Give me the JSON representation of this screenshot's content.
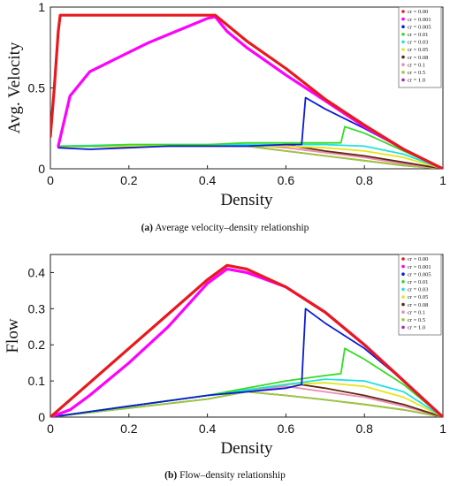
{
  "chart_data": [
    {
      "type": "line",
      "caption_tag": "(a)",
      "caption_text": "Average velocity–density relationship",
      "xlabel": "Density",
      "ylabel": "Avg. Velocity",
      "xlim": [
        0,
        1
      ],
      "ylim": [
        0,
        1
      ],
      "xticks": [
        "0",
        "0.2",
        "0.4",
        "0.6",
        "0.8",
        "1"
      ],
      "yticks": [
        "0",
        "0.5",
        "1"
      ],
      "legend_position": "top-right",
      "series": [
        {
          "name": "cr = 0.00",
          "color": "#e8191d",
          "x": [
            0.0,
            0.01,
            0.02,
            0.025,
            0.03,
            0.1,
            0.2,
            0.3,
            0.4,
            0.42,
            0.5,
            0.6,
            0.7,
            0.8,
            0.9,
            1.0
          ],
          "y": [
            0.2,
            0.5,
            0.85,
            0.95,
            0.95,
            0.95,
            0.95,
            0.95,
            0.95,
            0.95,
            0.79,
            0.62,
            0.43,
            0.27,
            0.12,
            0.0
          ]
        },
        {
          "name": "cr = 0.001",
          "color": "#ff00ff",
          "x": [
            0.02,
            0.05,
            0.1,
            0.15,
            0.2,
            0.25,
            0.3,
            0.35,
            0.4,
            0.42,
            0.45,
            0.5,
            0.6,
            0.7,
            0.8,
            0.9,
            1.0
          ],
          "y": [
            0.14,
            0.45,
            0.6,
            0.66,
            0.72,
            0.78,
            0.83,
            0.88,
            0.93,
            0.94,
            0.85,
            0.75,
            0.58,
            0.42,
            0.26,
            0.12,
            0.0
          ]
        },
        {
          "name": "cr = 0.005",
          "color": "#0a1cd6",
          "x": [
            0.02,
            0.1,
            0.2,
            0.3,
            0.4,
            0.5,
            0.6,
            0.64,
            0.65,
            0.7,
            0.8,
            0.9,
            1.0
          ],
          "y": [
            0.13,
            0.12,
            0.13,
            0.14,
            0.14,
            0.14,
            0.15,
            0.15,
            0.44,
            0.37,
            0.25,
            0.12,
            0.0
          ]
        },
        {
          "name": "cr = 0.01",
          "color": "#33dd22",
          "x": [
            0.02,
            0.1,
            0.2,
            0.3,
            0.4,
            0.5,
            0.6,
            0.7,
            0.74,
            0.75,
            0.8,
            0.9,
            1.0
          ],
          "y": [
            0.14,
            0.14,
            0.15,
            0.15,
            0.15,
            0.16,
            0.16,
            0.16,
            0.16,
            0.26,
            0.22,
            0.11,
            0.0
          ]
        },
        {
          "name": "cr = 0.03",
          "color": "#22e0e0",
          "x": [
            0.02,
            0.2,
            0.4,
            0.6,
            0.7,
            0.8,
            0.9,
            1.0
          ],
          "y": [
            0.14,
            0.15,
            0.15,
            0.15,
            0.15,
            0.14,
            0.09,
            0.0
          ]
        },
        {
          "name": "cr = 0.05",
          "color": "#e5e51a",
          "x": [
            0.02,
            0.2,
            0.4,
            0.6,
            0.7,
            0.8,
            0.9,
            1.0
          ],
          "y": [
            0.14,
            0.14,
            0.14,
            0.14,
            0.13,
            0.11,
            0.07,
            0.0
          ]
        },
        {
          "name": "cr = 0.08",
          "color": "#5a2a14",
          "x": [
            0.02,
            0.2,
            0.4,
            0.55,
            0.62,
            0.7,
            0.8,
            0.9,
            1.0
          ],
          "y": [
            0.14,
            0.14,
            0.14,
            0.14,
            0.14,
            0.11,
            0.08,
            0.04,
            0.0
          ]
        },
        {
          "name": "cr = 0.1",
          "color": "#f08ab0",
          "x": [
            0.02,
            0.2,
            0.4,
            0.55,
            0.6,
            0.7,
            0.8,
            0.9,
            1.0
          ],
          "y": [
            0.14,
            0.14,
            0.14,
            0.14,
            0.13,
            0.1,
            0.07,
            0.03,
            0.0
          ]
        },
        {
          "name": "cr = 0.5",
          "color": "#99cc33",
          "x": [
            0.02,
            0.2,
            0.4,
            0.5,
            0.6,
            0.7,
            0.8,
            0.9,
            1.0
          ],
          "y": [
            0.14,
            0.14,
            0.14,
            0.14,
            0.11,
            0.08,
            0.05,
            0.02,
            0.0
          ]
        },
        {
          "name": "cr = 1.0",
          "color": "#a72ab5",
          "x": [
            0.02,
            0.2,
            0.4,
            0.5,
            0.6,
            0.7,
            0.8,
            0.9,
            1.0
          ],
          "y": [
            0.14,
            0.14,
            0.14,
            0.14,
            0.11,
            0.08,
            0.05,
            0.02,
            0.0
          ]
        }
      ]
    },
    {
      "type": "line",
      "caption_tag": "(b)",
      "caption_text": "Flow–density relationship",
      "xlabel": "Density",
      "ylabel": "Flow",
      "xlim": [
        0,
        1
      ],
      "ylim": [
        0,
        0.45
      ],
      "xticks": [
        "0",
        "0.2",
        "0.4",
        "0.6",
        "0.8",
        "1"
      ],
      "yticks": [
        "0",
        "0.1",
        "0.2",
        "0.3",
        "0.4"
      ],
      "legend_position": "top-right",
      "series": [
        {
          "name": "cr = 0.00",
          "color": "#e8191d",
          "x": [
            0.0,
            0.1,
            0.2,
            0.3,
            0.4,
            0.45,
            0.5,
            0.6,
            0.7,
            0.8,
            0.9,
            1.0
          ],
          "y": [
            0.0,
            0.095,
            0.19,
            0.285,
            0.38,
            0.42,
            0.41,
            0.36,
            0.29,
            0.2,
            0.1,
            0.0
          ]
        },
        {
          "name": "cr = 0.001",
          "color": "#ff00ff",
          "x": [
            0.0,
            0.05,
            0.1,
            0.2,
            0.3,
            0.4,
            0.45,
            0.5,
            0.6,
            0.7,
            0.8,
            0.9,
            1.0
          ],
          "y": [
            0.0,
            0.02,
            0.06,
            0.15,
            0.25,
            0.37,
            0.41,
            0.4,
            0.36,
            0.29,
            0.2,
            0.1,
            0.0
          ]
        },
        {
          "name": "cr = 0.005",
          "color": "#0a1cd6",
          "x": [
            0.0,
            0.1,
            0.2,
            0.3,
            0.4,
            0.5,
            0.6,
            0.64,
            0.65,
            0.7,
            0.8,
            0.9,
            1.0
          ],
          "y": [
            0.0,
            0.015,
            0.03,
            0.045,
            0.06,
            0.07,
            0.08,
            0.09,
            0.3,
            0.26,
            0.19,
            0.1,
            0.0
          ]
        },
        {
          "name": "cr = 0.01",
          "color": "#33dd22",
          "x": [
            0.0,
            0.1,
            0.2,
            0.3,
            0.4,
            0.5,
            0.6,
            0.7,
            0.74,
            0.75,
            0.8,
            0.9,
            1.0
          ],
          "y": [
            0.0,
            0.015,
            0.03,
            0.045,
            0.06,
            0.08,
            0.1,
            0.115,
            0.12,
            0.19,
            0.16,
            0.09,
            0.0
          ]
        },
        {
          "name": "cr = 0.03",
          "color": "#22e0e0",
          "x": [
            0.0,
            0.2,
            0.4,
            0.6,
            0.7,
            0.8,
            0.9,
            1.0
          ],
          "y": [
            0.0,
            0.03,
            0.06,
            0.09,
            0.105,
            0.1,
            0.07,
            0.0
          ]
        },
        {
          "name": "cr = 0.05",
          "color": "#e5e51a",
          "x": [
            0.0,
            0.2,
            0.4,
            0.6,
            0.7,
            0.8,
            0.9,
            1.0
          ],
          "y": [
            0.0,
            0.03,
            0.06,
            0.09,
            0.095,
            0.085,
            0.055,
            0.0
          ]
        },
        {
          "name": "cr = 0.08",
          "color": "#5a2a14",
          "x": [
            0.0,
            0.2,
            0.4,
            0.6,
            0.62,
            0.7,
            0.8,
            0.9,
            1.0
          ],
          "y": [
            0.0,
            0.03,
            0.06,
            0.09,
            0.093,
            0.08,
            0.06,
            0.035,
            0.0
          ]
        },
        {
          "name": "cr = 0.1",
          "color": "#f08ab0",
          "x": [
            0.0,
            0.2,
            0.4,
            0.6,
            0.7,
            0.8,
            0.9,
            1.0
          ],
          "y": [
            0.0,
            0.03,
            0.06,
            0.085,
            0.07,
            0.055,
            0.03,
            0.0
          ]
        },
        {
          "name": "cr = 0.5",
          "color": "#99cc33",
          "x": [
            0.0,
            0.2,
            0.4,
            0.5,
            0.6,
            0.7,
            0.8,
            0.9,
            1.0
          ],
          "y": [
            0.0,
            0.025,
            0.05,
            0.07,
            0.06,
            0.048,
            0.035,
            0.02,
            0.0
          ]
        },
        {
          "name": "cr = 1.0",
          "color": "#a72ab5",
          "x": [
            0.0,
            0.2,
            0.4,
            0.5,
            0.6,
            0.7,
            0.8,
            0.9,
            1.0
          ],
          "y": [
            0.0,
            0.025,
            0.05,
            0.07,
            0.06,
            0.048,
            0.035,
            0.02,
            0.0
          ]
        }
      ]
    }
  ]
}
